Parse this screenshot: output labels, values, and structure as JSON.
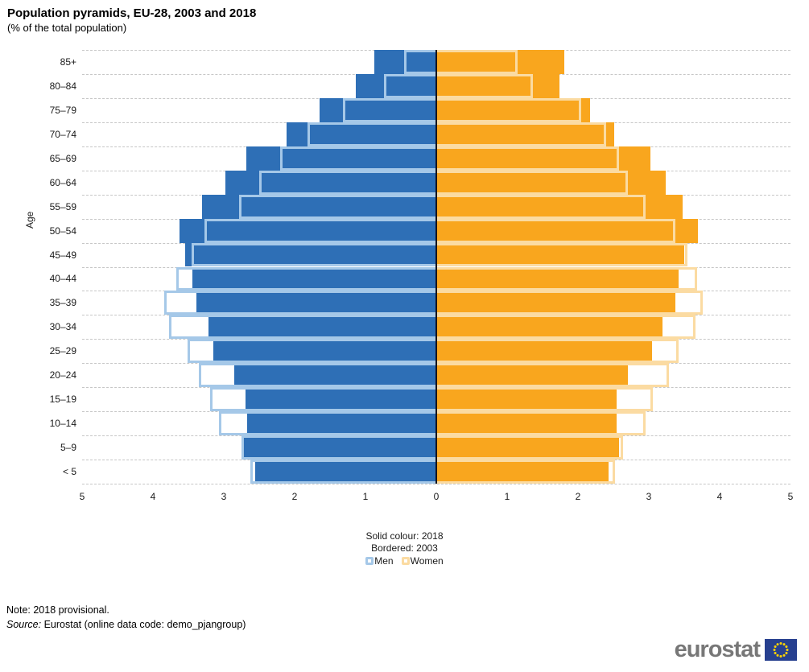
{
  "title": "Population pyramids, EU-28, 2003 and 2018",
  "subtitle": "(% of the total population)",
  "axis": {
    "y_title": "Age"
  },
  "legend": {
    "line1": "Solid colour: 2018",
    "line2": "Bordered: 2003",
    "men_label": "Men",
    "women_label": "Women"
  },
  "footer": {
    "note": "Note: 2018 provisional.",
    "source_label": "Source:",
    "source_text": " Eurostat (online data code: demo_pjangroup)"
  },
  "logo": {
    "text": "eurostat"
  },
  "colors": {
    "men_solid": "#2e6fb6",
    "men_border": "#a5c8e8",
    "women_solid": "#f9a61e",
    "women_border": "#fbdba2",
    "center_axis": "#14141e",
    "gridline": "#c6c6c6",
    "logo_gray": "#777777",
    "flag_blue": "#27408f",
    "star_yellow": "#ffd400"
  },
  "chart_data": {
    "type": "bar",
    "subtype": "population-pyramid",
    "title": "Population pyramids, EU-28, 2003 and 2018",
    "subtitle": "(% of the total population)",
    "ylabel": "Age",
    "xlim": [
      -5,
      5
    ],
    "x_ticks": [
      "5",
      "4",
      "3",
      "2",
      "1",
      "0",
      "1",
      "2",
      "3",
      "4",
      "5"
    ],
    "grid": "horizontal-dashed",
    "legend_position": "bottom-center",
    "categories_top_to_bottom": [
      "85+",
      "80–84",
      "75–79",
      "70–74",
      "65–69",
      "60–64",
      "55–59",
      "50–54",
      "45–49",
      "40–44",
      "35–39",
      "30–34",
      "25–29",
      "20–24",
      "15–19",
      "10–14",
      "5–9",
      "< 5"
    ],
    "series": [
      {
        "name": "Men 2018",
        "side": "left",
        "style": "solid",
        "values": [
          0.87,
          1.14,
          1.65,
          2.11,
          2.68,
          2.98,
          3.31,
          3.62,
          3.55,
          3.44,
          3.39,
          3.22,
          3.15,
          2.85,
          2.69,
          2.67,
          2.72,
          2.56
        ]
      },
      {
        "name": "Men 2003",
        "side": "left",
        "style": "bordered",
        "values": [
          0.45,
          0.74,
          1.32,
          1.82,
          2.2,
          2.5,
          2.78,
          3.27,
          3.45,
          3.67,
          3.84,
          3.77,
          3.51,
          3.35,
          3.19,
          3.07,
          2.75,
          2.63
        ]
      },
      {
        "name": "Women 2018",
        "side": "right",
        "style": "solid",
        "values": [
          1.81,
          1.74,
          2.17,
          2.51,
          3.02,
          3.24,
          3.48,
          3.69,
          3.5,
          3.42,
          3.38,
          3.19,
          3.05,
          2.71,
          2.54,
          2.55,
          2.58,
          2.43
        ]
      },
      {
        "name": "Women 2003",
        "side": "right",
        "style": "bordered",
        "values": [
          1.15,
          1.36,
          2.05,
          2.4,
          2.58,
          2.7,
          2.95,
          3.38,
          3.55,
          3.68,
          3.76,
          3.66,
          3.42,
          3.28,
          3.06,
          2.96,
          2.64,
          2.52
        ]
      }
    ]
  }
}
